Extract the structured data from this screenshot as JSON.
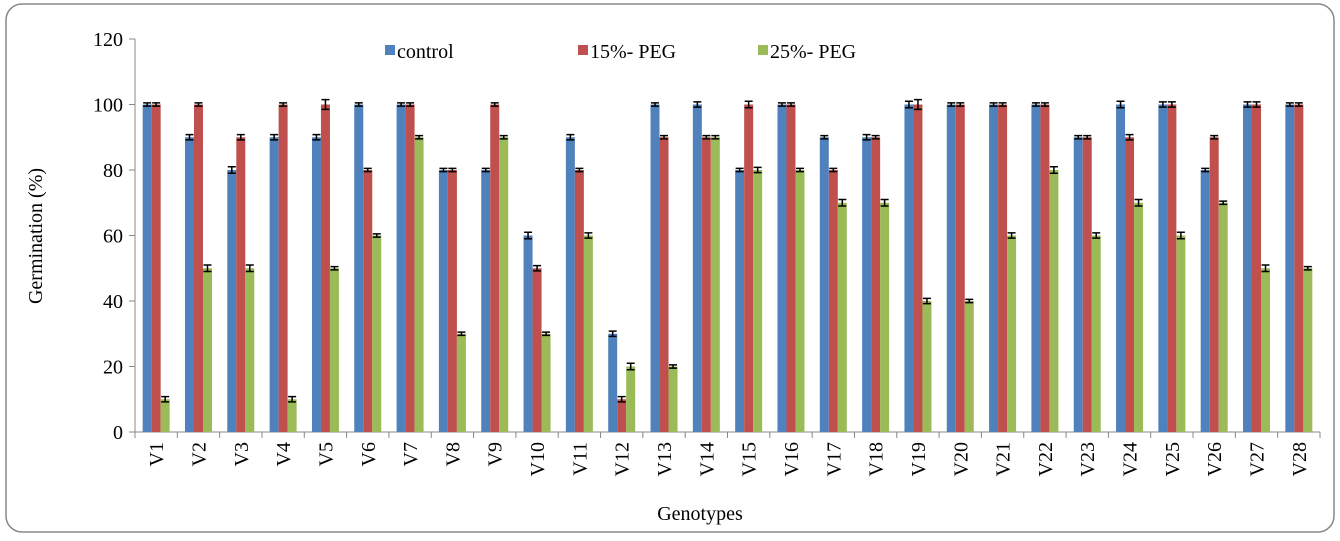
{
  "chart_data": {
    "type": "bar",
    "x_label": "Genotypes",
    "y_label": "Germination (%)",
    "categories": [
      "V1",
      "V2",
      "V3",
      "V4",
      "V5",
      "V6",
      "V7",
      "V8",
      "V9",
      "V10",
      "V11",
      "V12",
      "V13",
      "V14",
      "V15",
      "V16",
      "V17",
      "V18",
      "V19",
      "V20",
      "V21",
      "V22",
      "V23",
      "V24",
      "V25",
      "V26",
      "V27",
      "V28"
    ],
    "series": [
      {
        "name": "control",
        "color": "#4f81bd",
        "values": [
          100,
          90,
          80,
          90,
          90,
          100,
          100,
          80,
          80,
          60,
          90,
          30,
          100,
          100,
          80,
          100,
          90,
          90,
          100,
          100,
          100,
          100,
          90,
          100,
          100,
          80,
          100,
          100
        ],
        "errors": [
          0.5,
          0.8,
          1,
          0.8,
          0.8,
          0.5,
          0.5,
          0.5,
          0.5,
          1,
          0.8,
          0.8,
          0.5,
          0.8,
          0.5,
          0.5,
          0.5,
          0.8,
          1,
          0.5,
          0.5,
          0.5,
          0.5,
          1,
          0.8,
          0.5,
          0.8,
          0.5
        ]
      },
      {
        "name": "15%- PEG",
        "color": "#c0504d",
        "values": [
          100,
          100,
          90,
          100,
          100,
          80,
          100,
          80,
          100,
          50,
          80,
          10,
          90,
          90,
          100,
          100,
          80,
          90,
          100,
          100,
          100,
          100,
          90,
          90,
          100,
          90,
          100,
          100
        ],
        "errors": [
          0.5,
          0.5,
          0.8,
          0.5,
          1.5,
          0.5,
          0.5,
          0.5,
          0.5,
          0.8,
          0.5,
          0.8,
          0.5,
          0.5,
          1,
          0.5,
          0.5,
          0.5,
          1.5,
          0.5,
          0.5,
          0.5,
          0.5,
          0.8,
          0.8,
          0.5,
          0.8,
          0.5
        ]
      },
      {
        "name": "25%- PEG",
        "color": "#9bbb59",
        "values": [
          10,
          50,
          50,
          10,
          50,
          60,
          90,
          30,
          90,
          30,
          60,
          20,
          20,
          90,
          80,
          80,
          70,
          70,
          40,
          40,
          60,
          80,
          60,
          70,
          60,
          70,
          50,
          50
        ],
        "errors": [
          0.8,
          1,
          1,
          0.8,
          0.5,
          0.5,
          0.5,
          0.5,
          0.5,
          0.5,
          0.8,
          1,
          0.5,
          0.5,
          0.8,
          0.5,
          1,
          1,
          0.8,
          0.5,
          0.8,
          1,
          0.8,
          1,
          1,
          0.5,
          1,
          0.5
        ]
      }
    ],
    "ylim": [
      0,
      120
    ],
    "yticks": [
      0,
      20,
      40,
      60,
      80,
      100,
      120
    ],
    "grid": false,
    "legend": "top"
  }
}
